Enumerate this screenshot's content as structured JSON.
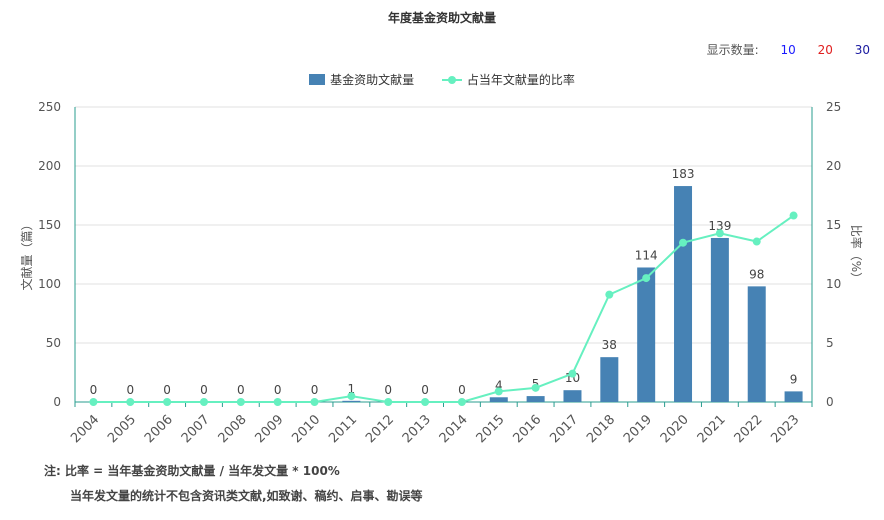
{
  "title": "年度基金资助文献量",
  "display_count": {
    "label": "显示数量:",
    "options": [
      "10",
      "20",
      "30"
    ],
    "colors": [
      "#1a1aff",
      "#e02020",
      "#1a1aa0"
    ]
  },
  "legend": {
    "bar": "基金资助文献量",
    "line": "占当年文献量的比率"
  },
  "notes": {
    "line1": "注:  比率 = 当年基金资助文献量 / 当年发文量 * 100%",
    "line2": "当年发文量的统计不包含资讯类文献,如致谢、稿约、启事、勘误等"
  },
  "chart_data": {
    "type": "bar",
    "categories": [
      "2004",
      "2005",
      "2006",
      "2007",
      "2008",
      "2009",
      "2010",
      "2011",
      "2012",
      "2013",
      "2014",
      "2015",
      "2016",
      "2017",
      "2018",
      "2019",
      "2020",
      "2021",
      "2022",
      "2023"
    ],
    "series": [
      {
        "name": "基金资助文献量",
        "type": "bar",
        "axis": "left",
        "color": "#4682b4",
        "values": [
          0,
          0,
          0,
          0,
          0,
          0,
          0,
          1,
          0,
          0,
          0,
          4,
          5,
          10,
          38,
          114,
          183,
          139,
          98,
          9
        ]
      },
      {
        "name": "占当年文献量的比率",
        "type": "line",
        "axis": "right",
        "color": "#66f0c0",
        "values": [
          0,
          0,
          0,
          0,
          0,
          0,
          0,
          0.5,
          0,
          0,
          0,
          0.9,
          1.2,
          2.4,
          9.1,
          10.5,
          13.5,
          14.3,
          13.6,
          15.8
        ]
      }
    ],
    "ylabel": "文献量（篇）",
    "y2label": "比率（%）",
    "ylim": [
      0,
      250
    ],
    "yticks": [
      0,
      50,
      100,
      150,
      200,
      250
    ],
    "y2lim": [
      0,
      25
    ],
    "y2ticks": [
      0,
      5,
      10,
      15,
      20,
      25
    ],
    "grid": true,
    "legend_position": "top-center"
  }
}
